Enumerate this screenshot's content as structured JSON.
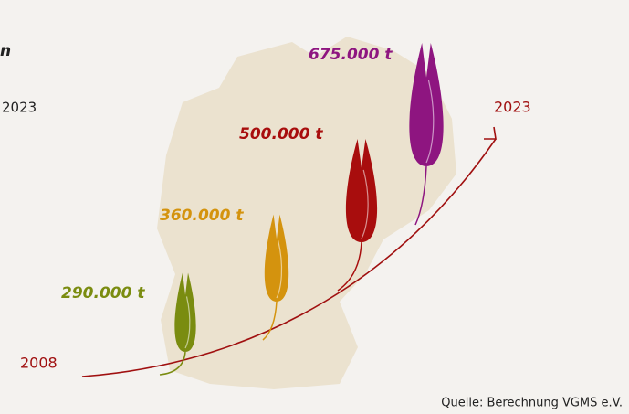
{
  "chart_data": {
    "type": "pictogram",
    "title": "n",
    "subtitle": "2023",
    "values": [
      290000,
      360000,
      500000,
      675000
    ],
    "value_labels": [
      "290.000 t",
      "360.000 t",
      "500.000 t",
      "675.000 t"
    ],
    "colors": [
      "#7a8c10",
      "#d4930e",
      "#a80d0d",
      "#8e1580"
    ],
    "start_label": "2008",
    "end_label": "2023",
    "line_color": "#a01010",
    "source": "Quelle: Berechnung VGMS e.V."
  }
}
